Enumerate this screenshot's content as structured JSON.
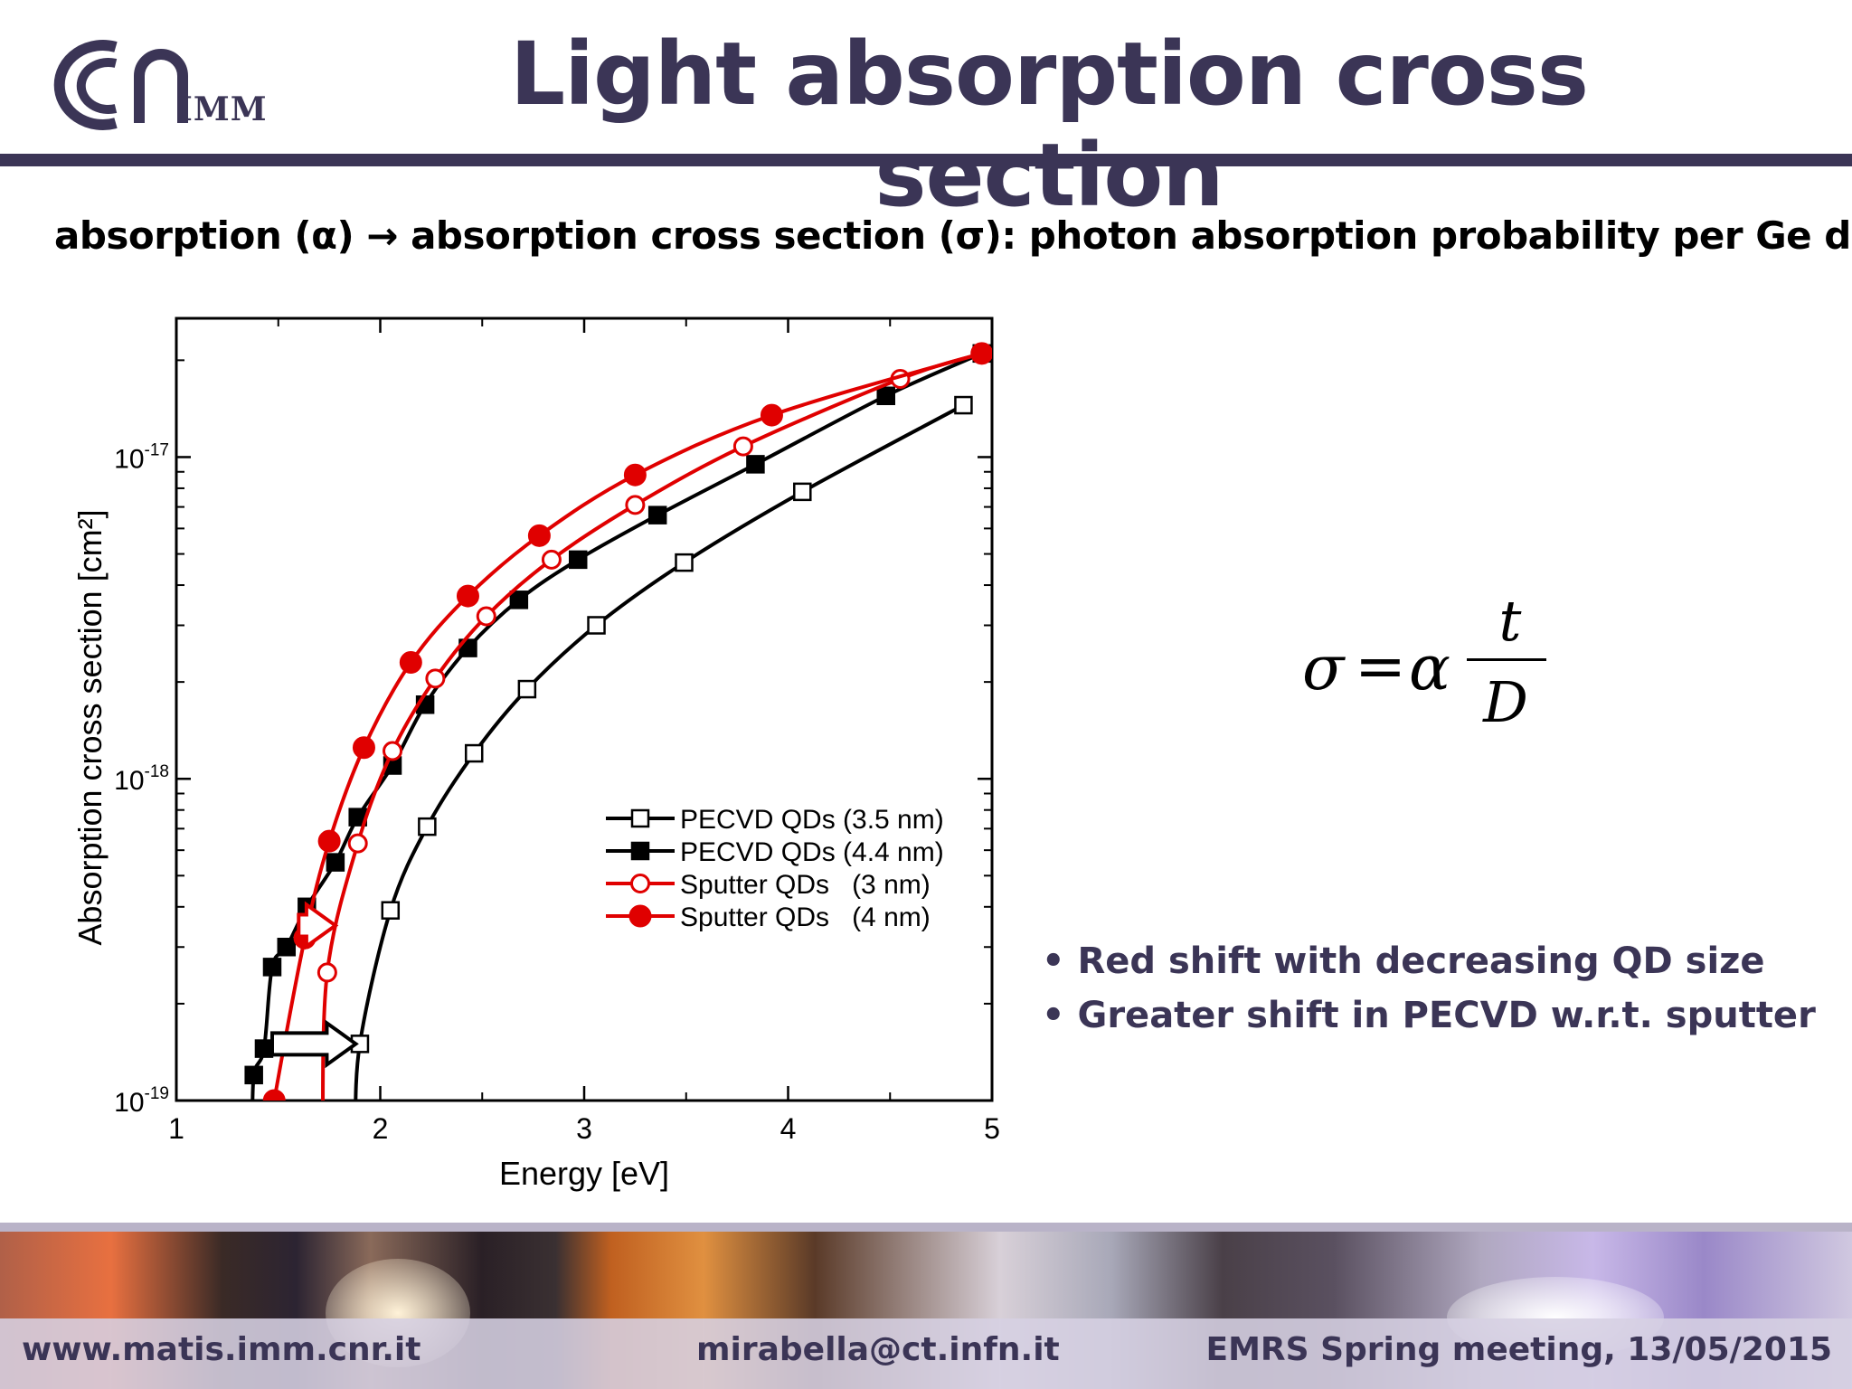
{
  "header": {
    "logo_text": "IMM",
    "title": "Light absorption cross section"
  },
  "subtitle": "absorption (α) → absorption cross section (σ): photon absorption probability per Ge dose",
  "formula": {
    "lhs": "σ",
    "eq": "=",
    "alpha": "α",
    "numerator": "t",
    "denominator": "D"
  },
  "bullets": [
    "Red shift with decreasing QD size",
    "Greater shift in PECVD w.r.t. sputter"
  ],
  "footer": {
    "left": "www.matis.imm.cnr.it",
    "middle": "mirabella@ct.infn.it",
    "right": "EMRS Spring meeting, 13/05/2015"
  },
  "colors": {
    "brand": "#3b3556",
    "red": "#e00000",
    "black": "#000000"
  },
  "chart_data": {
    "type": "scatter",
    "xlabel": "Energy [eV]",
    "ylabel": "Absorption cross section [cm²]",
    "xlim": [
      1,
      5
    ],
    "ylim": [
      1e-19,
      2.7e-17
    ],
    "yscale": "log",
    "x_ticks": [
      "1",
      "2",
      "3",
      "4",
      "5"
    ],
    "y_ticks": [
      {
        "value": 1e-19,
        "base": "10",
        "exp": "-19"
      },
      {
        "value": 1e-18,
        "base": "10",
        "exp": "-18"
      },
      {
        "value": 1e-17,
        "base": "10",
        "exp": "-17"
      }
    ],
    "legend_position": "lower-right",
    "series": [
      {
        "name": "PECVD QDs (3.5 nm)",
        "color": "#000000",
        "marker": "square",
        "filled": false,
        "x": [
          1.9,
          2.05,
          2.23,
          2.46,
          2.72,
          3.06,
          3.49,
          4.07,
          4.86
        ],
        "y": [
          1.5e-19,
          3.9e-19,
          7.1e-19,
          1.2e-18,
          1.9e-18,
          3e-18,
          4.7e-18,
          7.8e-18,
          1.45e-17
        ]
      },
      {
        "name": "PECVD QDs (4.4 nm)",
        "color": "#000000",
        "marker": "square",
        "filled": true,
        "x": [
          1.38,
          1.43,
          1.47,
          1.54,
          1.64,
          1.78,
          1.89,
          2.06,
          2.22,
          2.43,
          2.68,
          2.97,
          3.36,
          3.84,
          4.48,
          4.95
        ],
        "y": [
          1.2e-19,
          1.45e-19,
          2.6e-19,
          3e-19,
          4e-19,
          5.5e-19,
          7.6e-19,
          1.1e-18,
          1.7e-18,
          2.55e-18,
          3.6e-18,
          4.8e-18,
          6.6e-18,
          9.5e-18,
          1.55e-17,
          2.1e-17
        ]
      },
      {
        "name": "Sputter QDs   (3 nm)",
        "color": "#e00000",
        "marker": "circle",
        "filled": false,
        "x": [
          1.74,
          1.89,
          2.06,
          2.27,
          2.52,
          2.84,
          3.25,
          3.78,
          4.55,
          4.95
        ],
        "y": [
          2.5e-19,
          6.3e-19,
          1.22e-18,
          2.05e-18,
          3.2e-18,
          4.8e-18,
          7.1e-18,
          1.08e-17,
          1.75e-17,
          2.1e-17
        ]
      },
      {
        "name": "Sputter QDs   (4 nm)",
        "color": "#e00000",
        "marker": "circle",
        "filled": true,
        "x": [
          1.48,
          1.63,
          1.75,
          1.92,
          2.15,
          2.43,
          2.78,
          3.25,
          3.92,
          4.95
        ],
        "y": [
          1e-19,
          3.2e-19,
          6.4e-19,
          1.25e-18,
          2.3e-18,
          3.7e-18,
          5.7e-18,
          8.8e-18,
          1.35e-17,
          2.1e-17
        ]
      }
    ]
  }
}
